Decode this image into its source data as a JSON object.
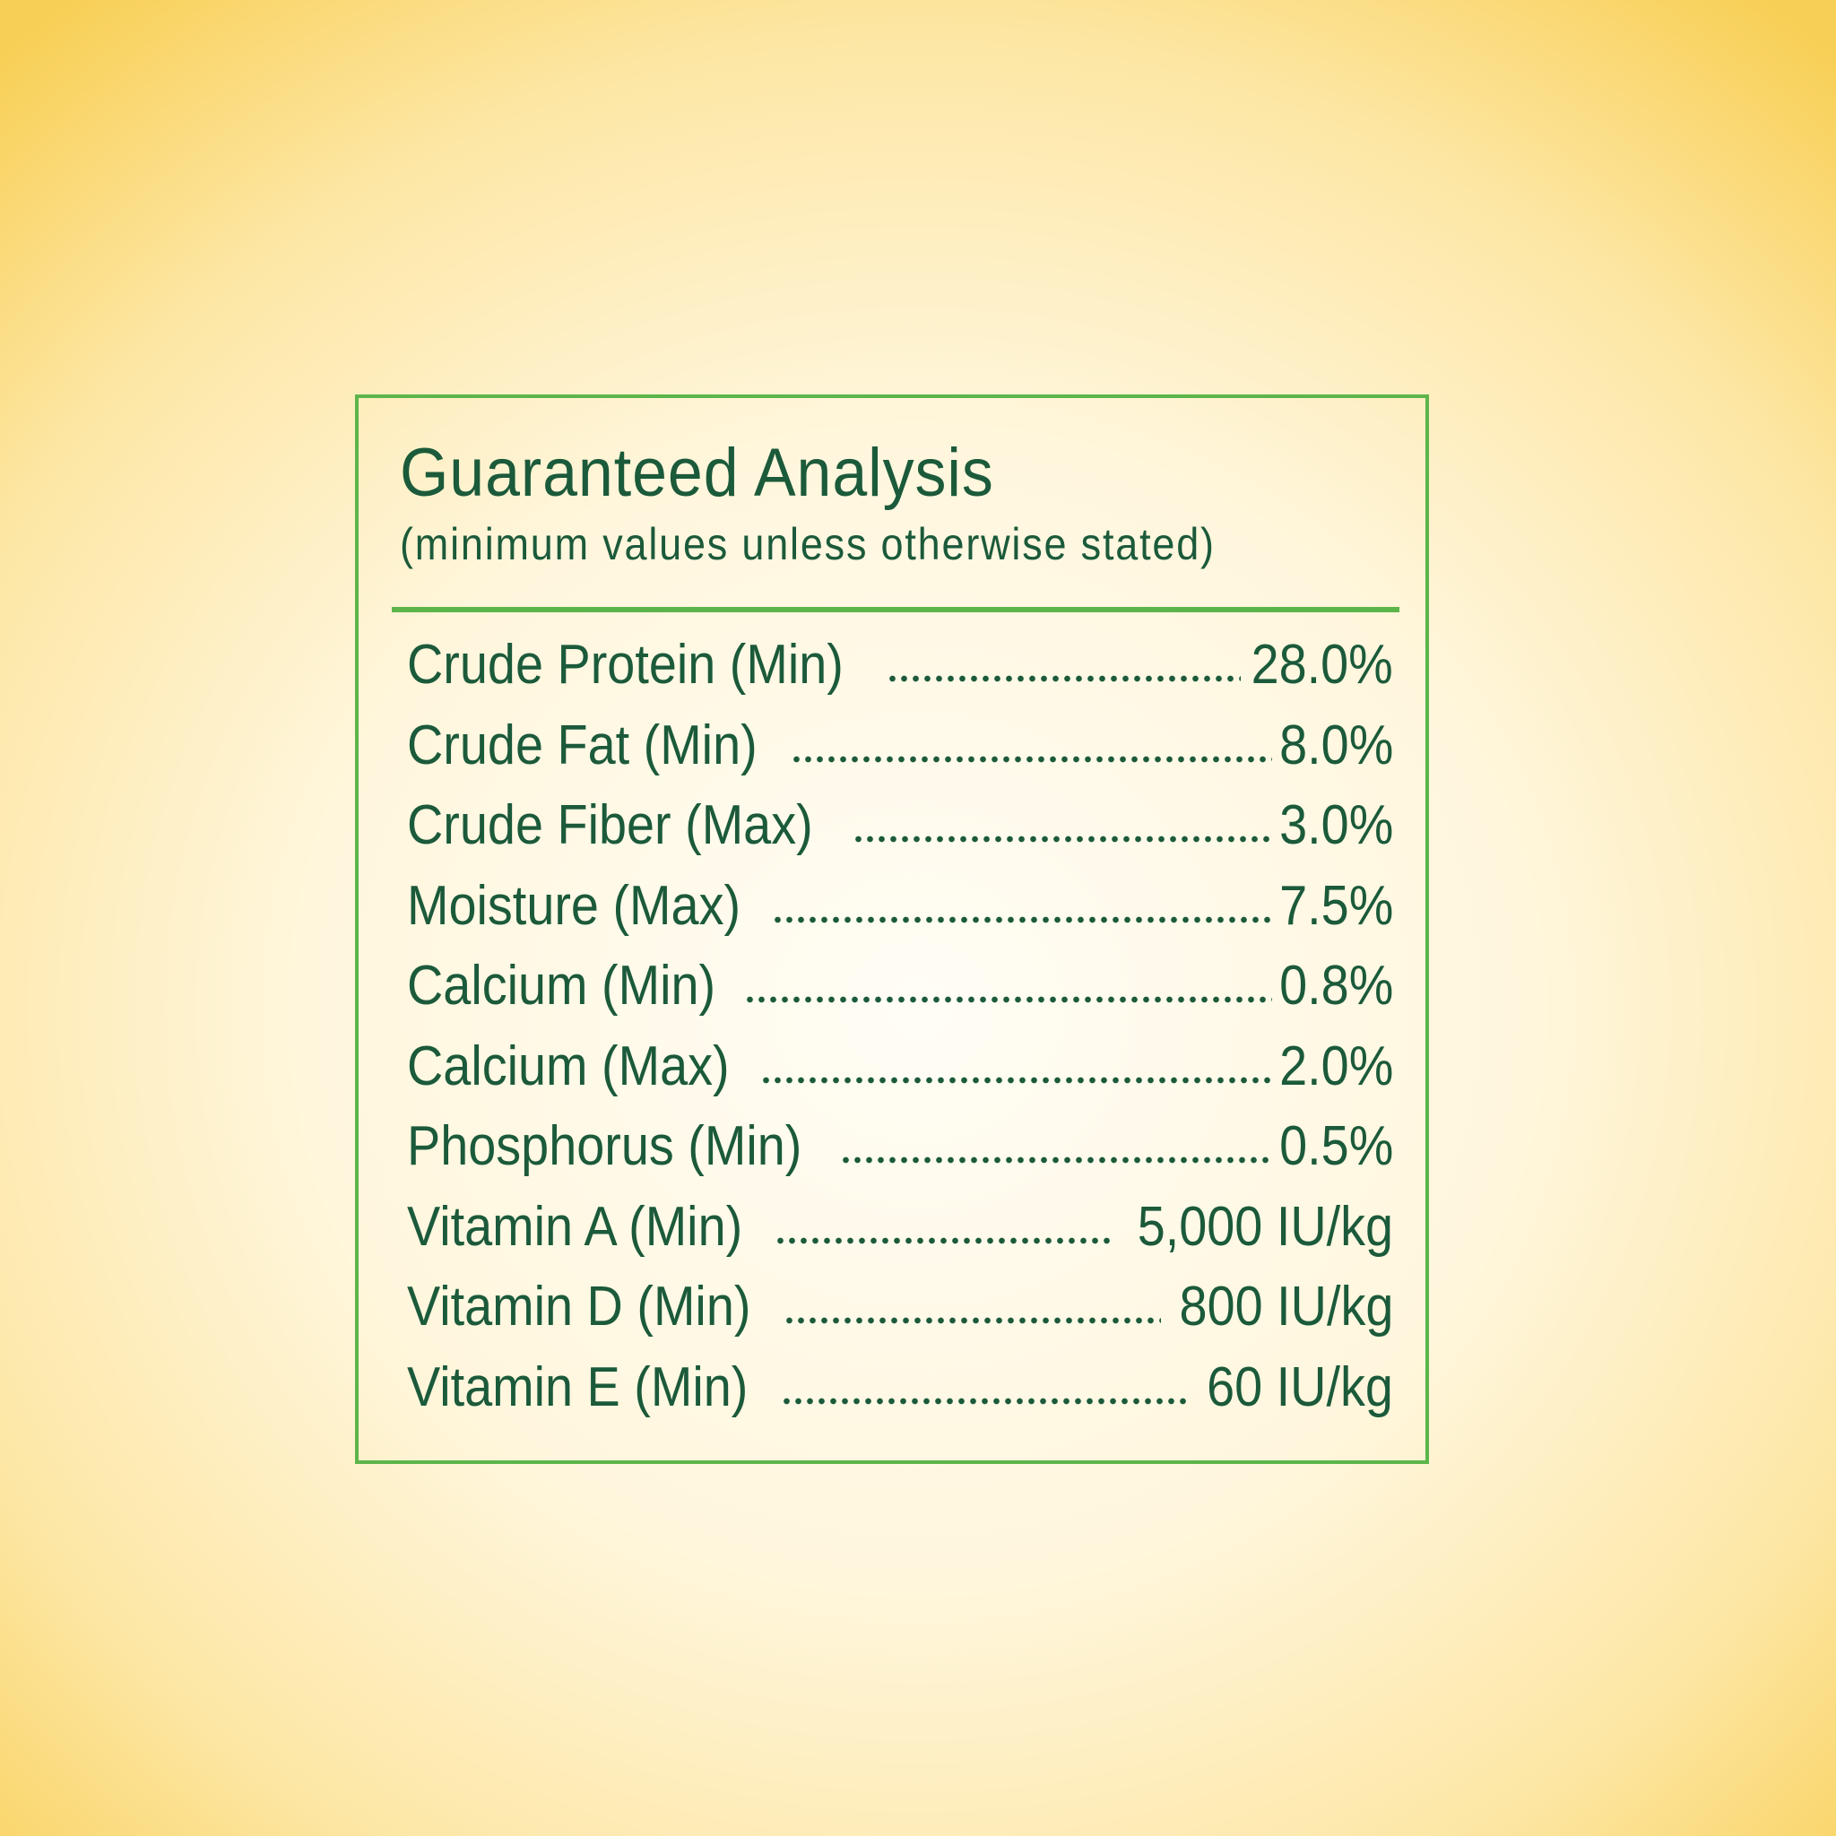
{
  "panel": {
    "title": "Guaranteed Analysis",
    "subtitle": "(minimum values unless otherwise stated)",
    "rows": [
      {
        "label": "Crude Protein (Min)",
        "value": "28.0%"
      },
      {
        "label": "Crude Fat (Min)",
        "value": "8.0%"
      },
      {
        "label": "Crude Fiber (Max)",
        "value": "3.0%"
      },
      {
        "label": "Moisture (Max)",
        "value": "7.5%"
      },
      {
        "label": "Calcium (Min)",
        "value": "0.8%"
      },
      {
        "label": "Calcium (Max)",
        "value": "2.0%"
      },
      {
        "label": "Phosphorus (Min)",
        "value": "0.5%"
      },
      {
        "label": "Vitamin A (Min)",
        "value": "5,000 IU/kg"
      },
      {
        "label": "Vitamin D (Min)",
        "value": "800 IU/kg"
      },
      {
        "label": "Vitamin E (Min)",
        "value": "60 IU/kg"
      }
    ]
  }
}
